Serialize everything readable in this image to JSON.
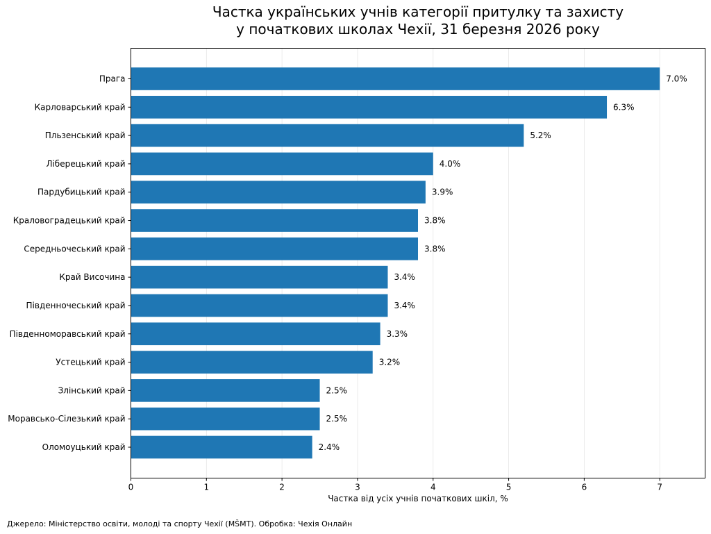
{
  "chart_data": {
    "type": "bar",
    "orientation": "horizontal",
    "title_lines": [
      "Частка українських учнів категорії притулку та захисту",
      "у початкових школах Чехії, 31 березня 2026 року"
    ],
    "xlabel": "Частка від усіх учнів початкових шкіл, %",
    "ylabel": "",
    "xlim": [
      0,
      7.6
    ],
    "xticks": [
      0,
      1,
      2,
      3,
      4,
      5,
      6,
      7
    ],
    "grid": "vertical",
    "bar_color": "#1f77b4",
    "categories": [
      "Прага",
      "Карловарський край",
      "Пльзенський край",
      "Ліберецький край",
      "Пардубицький край",
      "Краловоградецький край",
      "Середньочеський край",
      "Край Височина",
      "Південночеський край",
      "Південноморавський край",
      "Устецький край",
      "Злінський край",
      "Моравсько-Сілезький край",
      "Оломоуцький край"
    ],
    "values": [
      7.0,
      6.3,
      5.2,
      4.0,
      3.9,
      3.8,
      3.8,
      3.4,
      3.4,
      3.3,
      3.2,
      2.5,
      2.5,
      2.4
    ],
    "value_labels": [
      "7.0%",
      "6.3%",
      "5.2%",
      "4.0%",
      "3.9%",
      "3.8%",
      "3.8%",
      "3.4%",
      "3.4%",
      "3.3%",
      "3.2%",
      "2.5%",
      "2.5%",
      "2.4%"
    ],
    "source_note": "Джерело: Міністерство освіти, молоді та спорту Чехії (MŠMT). Обробка: Чехія Онлайн"
  }
}
